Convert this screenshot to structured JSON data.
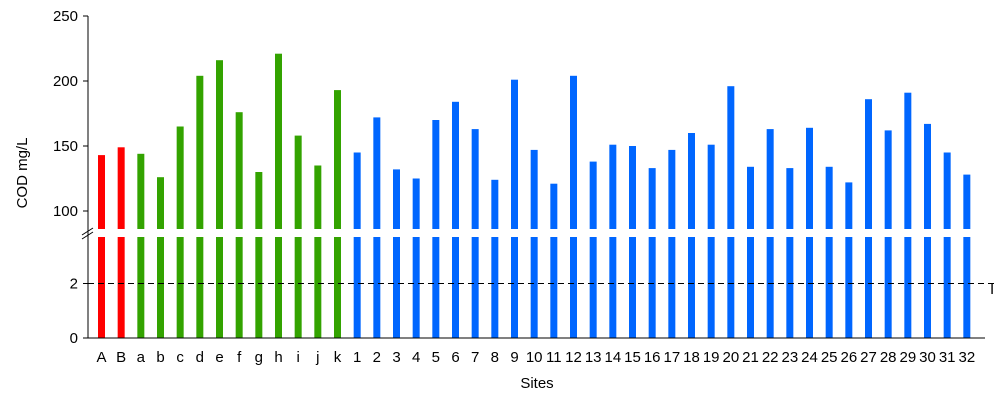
{
  "chart_data": {
    "type": "bar",
    "ylabel": "COD mg/L",
    "xlabel": "Sites",
    "y_axis_broken": true,
    "lower_ticks": [
      0,
      2
    ],
    "upper_ticks": [
      100,
      150,
      200,
      250
    ],
    "upper_range": [
      80,
      250
    ],
    "lower_range": [
      0,
      4
    ],
    "reference_line": {
      "value": 2,
      "style": "dashed",
      "label": "I"
    },
    "categories": [
      "A",
      "B",
      "a",
      "b",
      "c",
      "d",
      "e",
      "f",
      "g",
      "h",
      "i",
      "j",
      "k",
      "1",
      "2",
      "3",
      "4",
      "5",
      "6",
      "7",
      "8",
      "9",
      "10",
      "11",
      "12",
      "13",
      "14",
      "15",
      "16",
      "17",
      "18",
      "19",
      "20",
      "21",
      "22",
      "23",
      "24",
      "25",
      "26",
      "27",
      "28",
      "29",
      "30",
      "31",
      "32"
    ],
    "values": [
      143,
      149,
      144,
      126,
      165,
      204,
      216,
      176,
      130,
      221,
      158,
      135,
      193,
      145,
      172,
      132,
      125,
      170,
      184,
      163,
      124,
      201,
      147,
      121,
      204,
      138,
      151,
      150,
      133,
      147,
      160,
      151,
      196,
      134,
      163,
      133,
      164,
      134,
      122,
      186,
      162,
      191,
      167,
      145,
      128
    ],
    "colors": [
      "#ff0000",
      "#ff0000",
      "#33a300",
      "#33a300",
      "#33a300",
      "#33a300",
      "#33a300",
      "#33a300",
      "#33a300",
      "#33a300",
      "#33a300",
      "#33a300",
      "#33a300",
      "#0066ff",
      "#0066ff",
      "#0066ff",
      "#0066ff",
      "#0066ff",
      "#0066ff",
      "#0066ff",
      "#0066ff",
      "#0066ff",
      "#0066ff",
      "#0066ff",
      "#0066ff",
      "#0066ff",
      "#0066ff",
      "#0066ff",
      "#0066ff",
      "#0066ff",
      "#0066ff",
      "#0066ff",
      "#0066ff",
      "#0066ff",
      "#0066ff",
      "#0066ff",
      "#0066ff",
      "#0066ff",
      "#0066ff",
      "#0066ff",
      "#0066ff",
      "#0066ff",
      "#0066ff",
      "#0066ff",
      "#0066ff"
    ],
    "grid": false,
    "legend": "none"
  }
}
